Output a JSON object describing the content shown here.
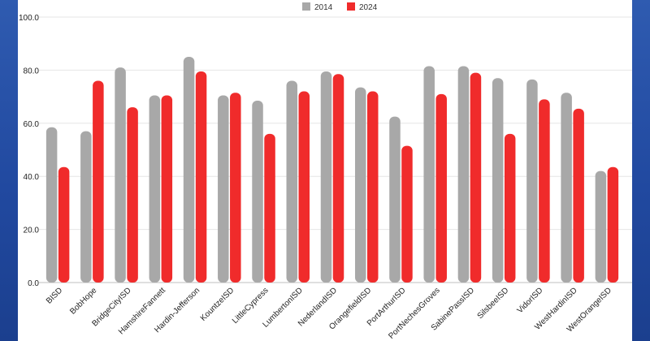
{
  "chart_data": {
    "type": "bar",
    "title": "",
    "xlabel": "",
    "ylabel": "",
    "ylim": [
      0,
      100
    ],
    "yticks": [
      "0.0",
      "20.0",
      "40.0",
      "60.0",
      "80.0",
      "100.0"
    ],
    "grid": true,
    "legend_position": "top-center",
    "categories": [
      "BISD",
      "BobHope",
      "BridgeCityISD",
      "HamshireFannett",
      "Hardin-Jefferson",
      "KountzeISD",
      "LittleCypress",
      "LumbertonISD",
      "NederlandISD",
      "OrangefieldISD",
      "PortArthurISD",
      "PortNechesGroves",
      "SabinePassISD",
      "SilsbeeISD",
      "VidorISD",
      "WestHardinISD",
      "WestOrangeISD"
    ],
    "series": [
      {
        "name": "2014",
        "color": "#a8a8a8",
        "values": [
          58.5,
          57.0,
          81.0,
          70.5,
          85.0,
          70.5,
          68.5,
          76.0,
          79.5,
          73.5,
          62.5,
          81.5,
          81.5,
          77.0,
          76.5,
          71.5,
          42.0
        ]
      },
      {
        "name": "2024",
        "color": "#f02b2b",
        "values": [
          43.5,
          76.0,
          66.0,
          70.5,
          79.5,
          71.5,
          56.0,
          72.0,
          78.5,
          72.0,
          51.5,
          71.0,
          79.0,
          56.0,
          69.0,
          65.5,
          43.5
        ]
      }
    ]
  }
}
